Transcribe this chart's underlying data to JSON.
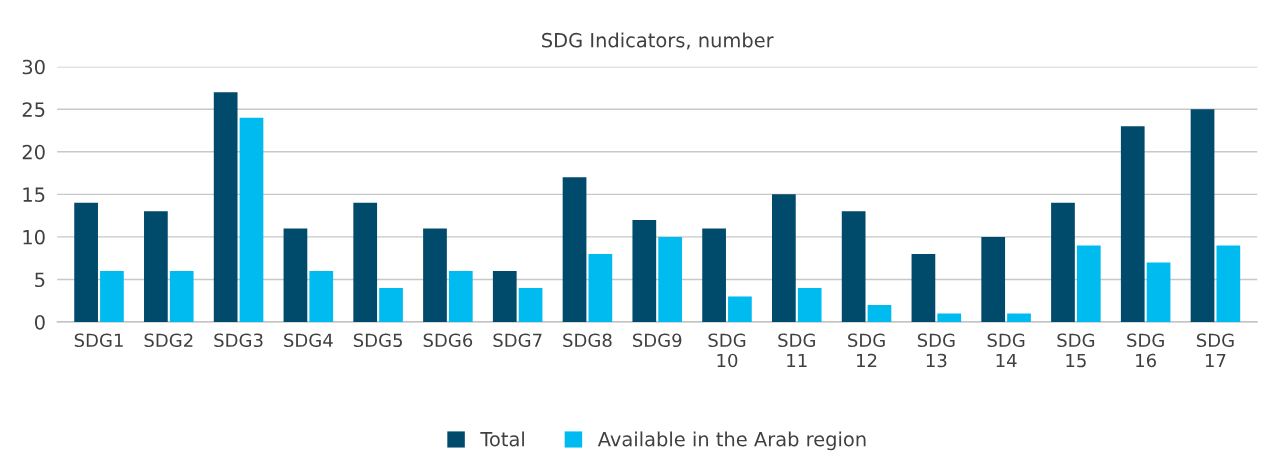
{
  "chart_data": {
    "type": "bar",
    "title": "SDG Indicators, number",
    "categories": [
      "SDG1",
      "SDG2",
      "SDG3",
      "SDG4",
      "SDG5",
      "SDG6",
      "SDG7",
      "SDG8",
      "SDG9",
      "SDG\n10",
      "SDG\n11",
      "SDG\n12",
      "SDG\n13",
      "SDG\n14",
      "SDG\n15",
      "SDG\n16",
      "SDG\n17"
    ],
    "series": [
      {
        "name": "Total",
        "color": "#004a6b",
        "values": [
          14,
          13,
          27,
          11,
          14,
          11,
          6,
          17,
          12,
          11,
          15,
          13,
          8,
          10,
          14,
          23,
          25
        ]
      },
      {
        "name": "Available in the Arab region",
        "color": "#00bbf0",
        "values": [
          6,
          6,
          24,
          6,
          4,
          6,
          4,
          8,
          10,
          3,
          4,
          2,
          1,
          1,
          9,
          7,
          9
        ]
      }
    ],
    "ylim": [
      0,
      30
    ],
    "yticks": [
      0,
      5,
      10,
      15,
      20,
      25,
      30
    ],
    "grid": "y",
    "legend": "bottom"
  }
}
